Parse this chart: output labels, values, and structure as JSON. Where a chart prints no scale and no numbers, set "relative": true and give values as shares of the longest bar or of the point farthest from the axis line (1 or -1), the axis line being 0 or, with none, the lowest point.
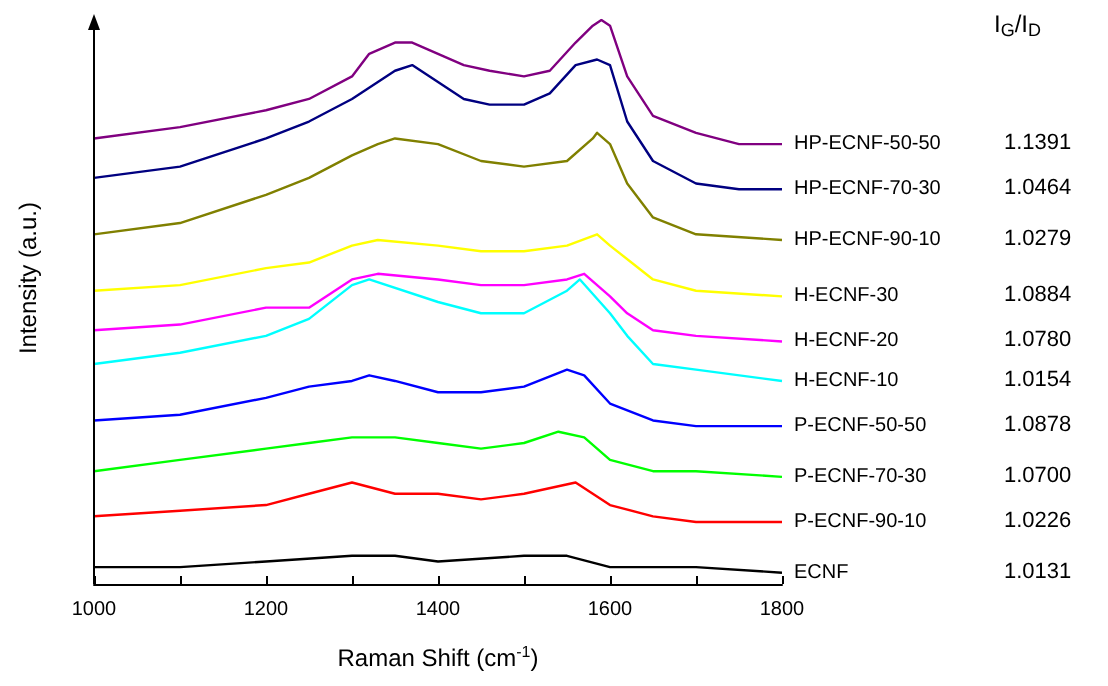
{
  "chart_data": {
    "type": "line",
    "relative": true,
    "xlabel": "Raman Shift (cm$^{-1}$)",
    "ylabel": "Intensity (a.u.)",
    "legend_title": "I$_{G}$/I$_{D}$",
    "xlim": [
      1000,
      1800
    ],
    "xticks": [
      1000,
      {
        "value": 1100,
        "label": null
      },
      1200,
      {
        "value": 1300,
        "label": null
      },
      1400,
      {
        "value": 1500,
        "label": null
      },
      1600,
      {
        "value": 1700,
        "label": null
      },
      1800
    ],
    "grid": false,
    "legend": false,
    "marker": "none",
    "line_style": "solid",
    "annotations": [
      "1.1391",
      "1.0464",
      "1.0279",
      "1.0884",
      "1.0780",
      "1.0154",
      "1.0878",
      "1.0700",
      "1.0226",
      "1.0131"
    ],
    "series": [
      {
        "name": "HP-ECNF-50-50",
        "color": "#800080",
        "x": [
          1000,
          1100,
          1200,
          1250,
          1300,
          1320,
          1350,
          1370,
          1400,
          1430,
          1460,
          1500,
          1530,
          1560,
          1580,
          1590,
          1600,
          1620,
          1650,
          1700,
          1750,
          1800
        ],
        "values": [
          0.79,
          0.81,
          0.84,
          0.86,
          0.9,
          0.94,
          0.96,
          0.96,
          0.94,
          0.92,
          0.91,
          0.9,
          0.91,
          0.96,
          0.99,
          1,
          0.99,
          0.9,
          0.83,
          0.8,
          0.78,
          0.78
        ]
      },
      {
        "name": "HP-ECNF-70-30",
        "color": "#000080",
        "x": [
          1000,
          1100,
          1200,
          1250,
          1300,
          1350,
          1370,
          1400,
          1430,
          1460,
          1500,
          1530,
          1560,
          1585,
          1600,
          1620,
          1650,
          1700,
          1750,
          1800
        ],
        "values": [
          0.72,
          0.74,
          0.79,
          0.82,
          0.86,
          0.91,
          0.92,
          0.89,
          0.86,
          0.85,
          0.85,
          0.87,
          0.92,
          0.93,
          0.92,
          0.82,
          0.75,
          0.71,
          0.7,
          0.7
        ]
      },
      {
        "name": "HP-ECNF-90-10",
        "color": "#808000",
        "x": [
          1000,
          1100,
          1200,
          1250,
          1300,
          1330,
          1350,
          1400,
          1450,
          1500,
          1550,
          1580,
          1585,
          1600,
          1620,
          1650,
          1700,
          1800
        ],
        "values": [
          0.62,
          0.64,
          0.69,
          0.72,
          0.76,
          0.78,
          0.79,
          0.78,
          0.75,
          0.74,
          0.75,
          0.79,
          0.8,
          0.78,
          0.71,
          0.65,
          0.62,
          0.61
        ]
      },
      {
        "name": "H-ECNF-30",
        "color": "#ffff00",
        "x": [
          1000,
          1100,
          1200,
          1250,
          1300,
          1330,
          1400,
          1450,
          1500,
          1550,
          1585,
          1600,
          1650,
          1700,
          1800
        ],
        "values": [
          0.52,
          0.53,
          0.56,
          0.57,
          0.6,
          0.61,
          0.6,
          0.59,
          0.59,
          0.6,
          0.62,
          0.6,
          0.54,
          0.52,
          0.51
        ]
      },
      {
        "name": "H-ECNF-20",
        "color": "#ff00ff",
        "x": [
          1000,
          1100,
          1200,
          1250,
          1300,
          1330,
          1400,
          1450,
          1500,
          1550,
          1570,
          1600,
          1620,
          1650,
          1700,
          1800
        ],
        "values": [
          0.45,
          0.46,
          0.49,
          0.49,
          0.54,
          0.55,
          0.54,
          0.53,
          0.53,
          0.54,
          0.55,
          0.51,
          0.48,
          0.45,
          0.44,
          0.43
        ]
      },
      {
        "name": "H-ECNF-10",
        "color": "#00ffff",
        "x": [
          1000,
          1100,
          1200,
          1250,
          1300,
          1320,
          1400,
          1450,
          1500,
          1550,
          1565,
          1600,
          1620,
          1650,
          1700,
          1800
        ],
        "values": [
          0.39,
          0.41,
          0.44,
          0.47,
          0.53,
          0.54,
          0.5,
          0.48,
          0.48,
          0.52,
          0.54,
          0.48,
          0.44,
          0.39,
          0.38,
          0.36
        ]
      },
      {
        "name": "P-ECNF-50-50",
        "color": "#0000ff",
        "x": [
          1000,
          1100,
          1200,
          1250,
          1300,
          1320,
          1350,
          1400,
          1450,
          1500,
          1550,
          1570,
          1600,
          1650,
          1700,
          1800
        ],
        "values": [
          0.29,
          0.3,
          0.33,
          0.35,
          0.36,
          0.37,
          0.36,
          0.34,
          0.34,
          0.35,
          0.38,
          0.37,
          0.32,
          0.29,
          0.28,
          0.28
        ]
      },
      {
        "name": "P-ECNF-70-30",
        "color": "#00ff00",
        "x": [
          1000,
          1100,
          1200,
          1250,
          1300,
          1350,
          1400,
          1450,
          1500,
          1540,
          1570,
          1600,
          1650,
          1700,
          1800
        ],
        "values": [
          0.2,
          0.22,
          0.24,
          0.25,
          0.26,
          0.26,
          0.25,
          0.24,
          0.25,
          0.27,
          0.26,
          0.22,
          0.2,
          0.2,
          0.19
        ]
      },
      {
        "name": "P-ECNF-90-10",
        "color": "#ff0000",
        "x": [
          1000,
          1100,
          1200,
          1250,
          1300,
          1350,
          1400,
          1450,
          1500,
          1560,
          1600,
          1650,
          1700,
          1800
        ],
        "values": [
          0.12,
          0.13,
          0.14,
          0.16,
          0.18,
          0.16,
          0.16,
          0.15,
          0.16,
          0.18,
          0.14,
          0.12,
          0.11,
          0.11
        ]
      },
      {
        "name": "ECNF",
        "color": "#000000",
        "x": [
          1000,
          1100,
          1200,
          1300,
          1350,
          1400,
          1500,
          1550,
          1600,
          1700,
          1800
        ],
        "values": [
          0.03,
          0.03,
          0.04,
          0.05,
          0.05,
          0.04,
          0.05,
          0.05,
          0.03,
          0.03,
          0.02
        ]
      }
    ]
  }
}
